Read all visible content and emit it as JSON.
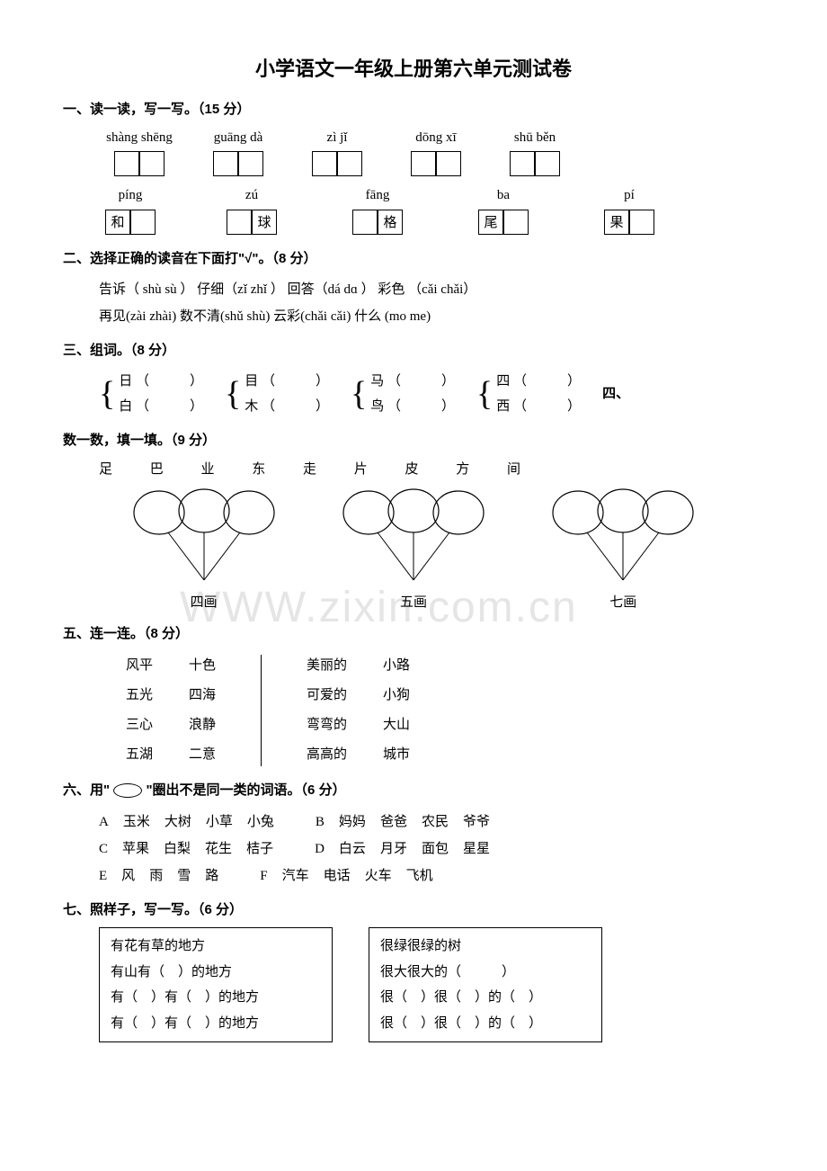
{
  "title": "小学语文一年级上册第六单元测试卷",
  "watermark": "WWW.zixin.com.cn",
  "sections": {
    "s1": {
      "title": "一、读一读，写一写。（15 分）",
      "row1": [
        {
          "py": "shàng shēng",
          "boxes": 2,
          "w": 110
        },
        {
          "py": "guāng dà",
          "boxes": 2,
          "w": 110
        },
        {
          "py": "zì jǐ",
          "boxes": 2,
          "w": 110
        },
        {
          "py": "dōng xī",
          "boxes": 2,
          "w": 110
        },
        {
          "py": "shū  běn",
          "boxes": 2,
          "w": 110
        }
      ],
      "row2": [
        {
          "py": "píng",
          "pre": "和",
          "boxes": 1,
          "w": 100
        },
        {
          "py": "zú",
          "post": "球",
          "boxes": 1,
          "w": 110
        },
        {
          "py": "fāng",
          "post": "格",
          "boxes": 1,
          "w": 110
        },
        {
          "py": "ba",
          "pre": "尾",
          "boxes": 1,
          "w": 110
        },
        {
          "py": "pí",
          "pre": "果",
          "boxes": 1,
          "w": 110
        }
      ]
    },
    "s2": {
      "title": "二、选择正确的读音在下面打\"√\"。（8 分）",
      "line1": "告诉（ shù sù ）   仔细（zǐ  zhǐ ）    回答（dá  dɑ ）   彩色 （cǎi chǎi）",
      "line2": "再见(zài zhài)    数不清(shǔ shù)    云彩(chǎi cǎi)   什么 (mo me)"
    },
    "s3": {
      "title": "三、组词。（8 分）",
      "pairs": [
        [
          "日",
          "白"
        ],
        [
          "目",
          "木"
        ],
        [
          "马",
          "鸟"
        ],
        [
          "四",
          "西"
        ]
      ],
      "tail": "四、"
    },
    "s4": {
      "title": "数一数，填一填。（9 分）",
      "chars": "足   巴   业   东   走   片   皮   方   间",
      "labels": [
        "四画",
        "五画",
        "七画"
      ]
    },
    "s5": {
      "title": "五、连一连。（8 分）",
      "leftA": [
        "风平",
        "五光",
        "三心",
        "五湖"
      ],
      "leftB": [
        "十色",
        "四海",
        "浪静",
        "二意"
      ],
      "rightA": [
        "美丽的",
        "可爱的",
        "弯弯的",
        "高高的"
      ],
      "rightB": [
        "小路",
        "小狗",
        "大山",
        "城市"
      ]
    },
    "s6": {
      "title": "六、用\"　\"圈出不是同一类的词语。（6 分）",
      "rows": [
        [
          "A",
          "玉米",
          "大树",
          "小草",
          "小兔",
          "B",
          "妈妈",
          "爸爸",
          "农民",
          "爷爷"
        ],
        [
          "C",
          "苹果",
          "白梨",
          "花生",
          "桔子",
          "D",
          "白云",
          "月牙",
          "面包",
          "星星"
        ],
        [
          "E",
          "风",
          "雨",
          "雪",
          "路",
          "F",
          "汽车",
          "电话",
          "火车",
          "飞机"
        ]
      ]
    },
    "s7": {
      "title": "七、照样子，写一写。（6 分）",
      "box1": [
        "有花有草的地方",
        "有山有（　）的地方",
        "有（　）有（　）的地方",
        "有（　）有（　）的地方"
      ],
      "box2": [
        "很绿很绿的树",
        "很大很大的（　　　）",
        "很（　）很（　）的（　）",
        "很（　）很（　）的（　）"
      ]
    }
  }
}
